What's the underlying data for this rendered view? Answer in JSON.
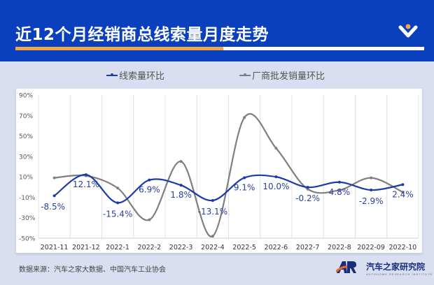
{
  "header": {
    "title": "近12个月经销商总线索量月度走势",
    "logo_icon": "brand-v-icon"
  },
  "legend": [
    {
      "label": "线索量环比",
      "color": "#1a3ca8"
    },
    {
      "label": "厂商批发销量环比",
      "color": "#7f7f7f"
    }
  ],
  "footer": {
    "source": "数据来源：汽车之家大数据、中国汽车工业协会",
    "brand_name": "汽车之家研究院",
    "brand_sub": "AUTOHOME RESEARCH INSTITUTE",
    "brand_logo": "AR"
  },
  "chart_data": {
    "type": "line",
    "title": "近12个月经销商总线索量月度走势",
    "xlabel": "",
    "ylabel": "",
    "categories": [
      "2021-11",
      "2021-12",
      "2022-1",
      "2022-2",
      "2022-3",
      "2022-4",
      "2022-5",
      "2022-6",
      "2022-7",
      "2022-8",
      "2022-09",
      "2022-10"
    ],
    "y_ticks": [
      "90%",
      "70%",
      "50%",
      "30%",
      "10%",
      "-10%",
      "-30%",
      "-50%"
    ],
    "ylim": [
      -50,
      90
    ],
    "grid": "vertical",
    "legend_position": "top",
    "series": [
      {
        "name": "线索量环比",
        "color": "#1a3ca8",
        "values": [
          -8.5,
          12.1,
          -15.4,
          6.9,
          1.8,
          -13.1,
          9.1,
          10.0,
          -0.2,
          4.8,
          -2.9,
          2.4
        ],
        "labels": [
          "-8.5%",
          "12.1%",
          "-15.4%",
          "6.9%",
          "1.8%",
          "-13.1%",
          "9.1%",
          "10.0%",
          "-0.2%",
          "4.8%",
          "-2.9%",
          "2.4%"
        ]
      },
      {
        "name": "厂商批发销量环比",
        "color": "#7f7f7f",
        "values": [
          9,
          11,
          -1,
          -32,
          25,
          -48,
          68,
          38,
          -2,
          -3,
          9,
          -5
        ]
      }
    ]
  }
}
